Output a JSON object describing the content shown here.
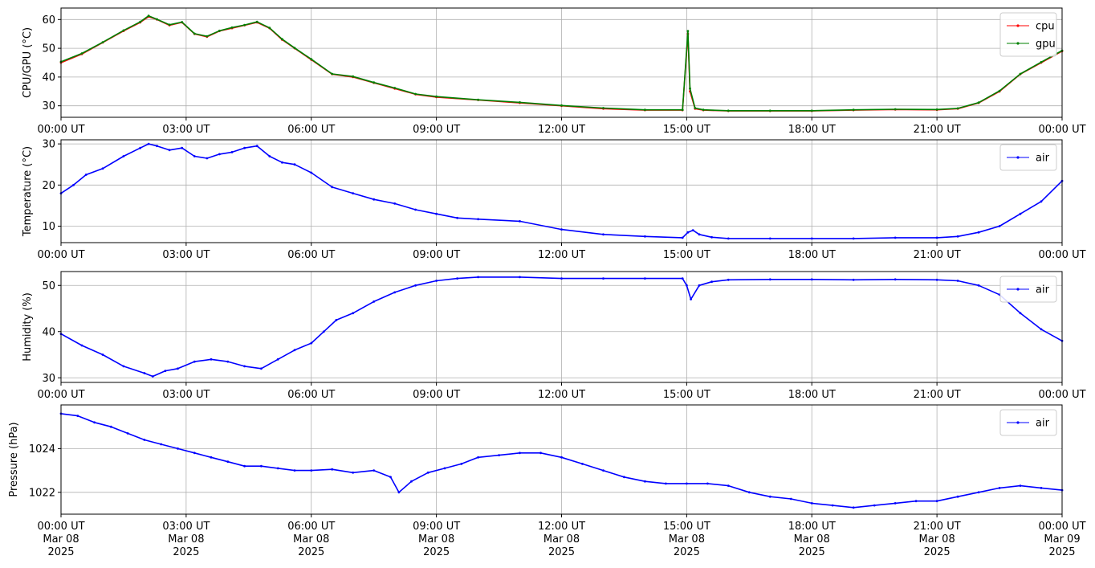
{
  "chart_data": [
    {
      "type": "line",
      "ylabel": "CPU/GPU (°C)",
      "ylim": [
        26,
        64
      ],
      "yticks": [
        30,
        40,
        50,
        60
      ],
      "xlim_hours": [
        0,
        24
      ],
      "xticks": [
        "00:00 UT",
        "03:00 UT",
        "06:00 UT",
        "09:00 UT",
        "12:00 UT",
        "15:00 UT",
        "18:00 UT",
        "21:00 UT",
        "00:00 UT"
      ],
      "grid": true,
      "legend": "top-right",
      "series": [
        {
          "name": "cpu",
          "color": "#ff0000",
          "x": [
            0,
            0.5,
            1,
            1.5,
            1.9,
            2.1,
            2.3,
            2.6,
            2.9,
            3.2,
            3.5,
            3.8,
            4.1,
            4.4,
            4.7,
            5.0,
            5.3,
            5.6,
            6.0,
            6.5,
            7,
            7.5,
            8,
            8.5,
            9,
            10,
            11,
            12,
            13,
            14,
            14.9,
            15.03,
            15.08,
            15.2,
            15.4,
            16,
            17,
            18,
            19,
            20,
            21,
            21.5,
            22,
            22.5,
            23,
            23.5,
            24
          ],
          "y": [
            45,
            48,
            52,
            56,
            59,
            61,
            60,
            58,
            59,
            55,
            54,
            56,
            57,
            58,
            59,
            57,
            53,
            50,
            46,
            41,
            40,
            38,
            36,
            34,
            33,
            32,
            31,
            30,
            29,
            28.5,
            28.5,
            55,
            35,
            29,
            28.5,
            28.2,
            28.2,
            28.2,
            28.5,
            28.7,
            28.6,
            29,
            31,
            35,
            41,
            45,
            49
          ]
        },
        {
          "name": "gpu",
          "color": "#008000",
          "x": [
            0,
            0.5,
            1,
            1.5,
            1.9,
            2.1,
            2.3,
            2.6,
            2.9,
            3.2,
            3.5,
            3.8,
            4.1,
            4.4,
            4.7,
            5.0,
            5.3,
            5.6,
            6.0,
            6.5,
            7,
            7.5,
            8,
            8.5,
            9,
            10,
            11,
            12,
            13,
            14,
            14.9,
            15.03,
            15.08,
            15.2,
            15.4,
            16,
            17,
            18,
            19,
            20,
            21,
            21.5,
            22,
            22.5,
            23,
            23.5,
            24
          ],
          "y": [
            45.3,
            48.2,
            52.1,
            56.2,
            59.2,
            61.3,
            60.1,
            58.2,
            59.1,
            55.1,
            54.2,
            56.1,
            57.2,
            58.1,
            59.2,
            57.1,
            53.2,
            50.1,
            46.2,
            41.1,
            40.2,
            38.1,
            36.2,
            34.1,
            33.2,
            32.1,
            31.2,
            30.1,
            29.2,
            28.6,
            28.6,
            56,
            36,
            29.2,
            28.6,
            28.3,
            28.3,
            28.3,
            28.6,
            28.8,
            28.7,
            29.1,
            31.1,
            35.2,
            41.1,
            45.2,
            49.2
          ]
        }
      ]
    },
    {
      "type": "line",
      "ylabel": "Temperature (°C)",
      "ylim": [
        6,
        31
      ],
      "yticks": [
        10,
        20,
        30
      ],
      "xlim_hours": [
        0,
        24
      ],
      "xticks": [
        "00:00 UT",
        "03:00 UT",
        "06:00 UT",
        "09:00 UT",
        "12:00 UT",
        "15:00 UT",
        "18:00 UT",
        "21:00 UT",
        "00:00 UT"
      ],
      "grid": true,
      "legend": "top-right",
      "series": [
        {
          "name": "air",
          "color": "#0000ff",
          "x": [
            0,
            0.3,
            0.6,
            1,
            1.5,
            1.9,
            2.1,
            2.3,
            2.6,
            2.9,
            3.2,
            3.5,
            3.8,
            4.1,
            4.4,
            4.7,
            5.0,
            5.3,
            5.6,
            6.0,
            6.5,
            7,
            7.5,
            8,
            8.5,
            9,
            9.5,
            10,
            11,
            12,
            13,
            14,
            14.9,
            15.03,
            15.15,
            15.3,
            15.6,
            16,
            17,
            18,
            19,
            20,
            21,
            21.5,
            22,
            22.5,
            23,
            23.5,
            24
          ],
          "y": [
            18,
            20,
            22.5,
            24,
            27,
            29,
            30,
            29.5,
            28.5,
            29,
            27,
            26.5,
            27.5,
            28,
            29,
            29.5,
            27,
            25.5,
            25,
            23,
            19.5,
            18,
            16.5,
            15.5,
            14,
            13,
            12,
            11.7,
            11.2,
            9.2,
            8,
            7.5,
            7.2,
            8.5,
            9,
            8,
            7.3,
            7,
            7,
            7,
            7,
            7.2,
            7.2,
            7.5,
            8.5,
            10,
            13,
            16,
            21
          ]
        }
      ]
    },
    {
      "type": "line",
      "ylabel": "Humidity (%)",
      "ylim": [
        29,
        53
      ],
      "yticks": [
        30,
        40,
        50
      ],
      "xlim_hours": [
        0,
        24
      ],
      "xticks": [
        "00:00 UT",
        "03:00 UT",
        "06:00 UT",
        "09:00 UT",
        "12:00 UT",
        "15:00 UT",
        "18:00 UT",
        "21:00 UT",
        "00:00 UT"
      ],
      "grid": true,
      "legend": "top-right",
      "series": [
        {
          "name": "air",
          "color": "#0000ff",
          "x": [
            0,
            0.5,
            1,
            1.5,
            2.0,
            2.2,
            2.5,
            2.8,
            3.2,
            3.6,
            4.0,
            4.4,
            4.8,
            5.2,
            5.6,
            6.0,
            6.3,
            6.6,
            7,
            7.5,
            8,
            8.5,
            9,
            9.5,
            10,
            11,
            12,
            13,
            14,
            14.9,
            15.0,
            15.1,
            15.3,
            15.6,
            16,
            17,
            18,
            19,
            20,
            21,
            21.5,
            22,
            22.5,
            23,
            23.5,
            24
          ],
          "y": [
            39.5,
            37,
            35,
            32.5,
            31,
            30.3,
            31.5,
            32,
            33.5,
            34,
            33.5,
            32.5,
            32,
            34,
            36,
            37.5,
            40,
            42.5,
            44,
            46.5,
            48.5,
            50,
            51,
            51.5,
            51.8,
            51.8,
            51.5,
            51.5,
            51.5,
            51.5,
            50,
            47,
            50,
            50.8,
            51.2,
            51.3,
            51.3,
            51.2,
            51.3,
            51.2,
            51,
            50,
            48,
            44,
            40.5,
            38
          ]
        }
      ]
    },
    {
      "type": "line",
      "ylabel": "Pressure (hPa)",
      "ylim": [
        1021,
        1026
      ],
      "yticks": [
        1022,
        1024
      ],
      "xlim_hours": [
        0,
        24
      ],
      "xticks": [
        "00:00 UT\nMar 08\n2025",
        "03:00 UT\nMar 08\n2025",
        "06:00 UT\nMar 08\n2025",
        "09:00 UT\nMar 08\n2025",
        "12:00 UT\nMar 08\n2025",
        "15:00 UT\nMar 08\n2025",
        "18:00 UT\nMar 08\n2025",
        "21:00 UT\nMar 08\n2025",
        "00:00 UT\nMar 09\n2025"
      ],
      "grid": true,
      "legend": "top-right",
      "series": [
        {
          "name": "air",
          "color": "#0000ff",
          "x": [
            0,
            0.4,
            0.8,
            1.2,
            1.6,
            2.0,
            2.4,
            2.8,
            3.2,
            3.6,
            4.0,
            4.4,
            4.8,
            5.2,
            5.6,
            6.0,
            6.5,
            7,
            7.5,
            7.9,
            8.1,
            8.4,
            8.8,
            9.2,
            9.6,
            10,
            10.5,
            11,
            11.5,
            12,
            12.5,
            13,
            13.5,
            14,
            14.5,
            15,
            15.5,
            16,
            16.5,
            17,
            17.5,
            18,
            18.5,
            19,
            19.5,
            20,
            20.5,
            21,
            21.5,
            22,
            22.5,
            23,
            23.5,
            24
          ],
          "y": [
            1025.6,
            1025.5,
            1025.2,
            1025,
            1024.7,
            1024.4,
            1024.2,
            1024,
            1023.8,
            1023.6,
            1023.4,
            1023.2,
            1023.2,
            1023.1,
            1023,
            1023,
            1023.05,
            1022.9,
            1023,
            1022.7,
            1022,
            1022.5,
            1022.9,
            1023.1,
            1023.3,
            1023.6,
            1023.7,
            1023.8,
            1023.8,
            1023.6,
            1023.3,
            1023,
            1022.7,
            1022.5,
            1022.4,
            1022.4,
            1022.4,
            1022.3,
            1022,
            1021.8,
            1021.7,
            1021.5,
            1021.4,
            1021.3,
            1021.4,
            1021.5,
            1021.6,
            1021.6,
            1021.8,
            1022,
            1022.2,
            1022.3,
            1022.2,
            1022.1
          ]
        }
      ]
    }
  ]
}
